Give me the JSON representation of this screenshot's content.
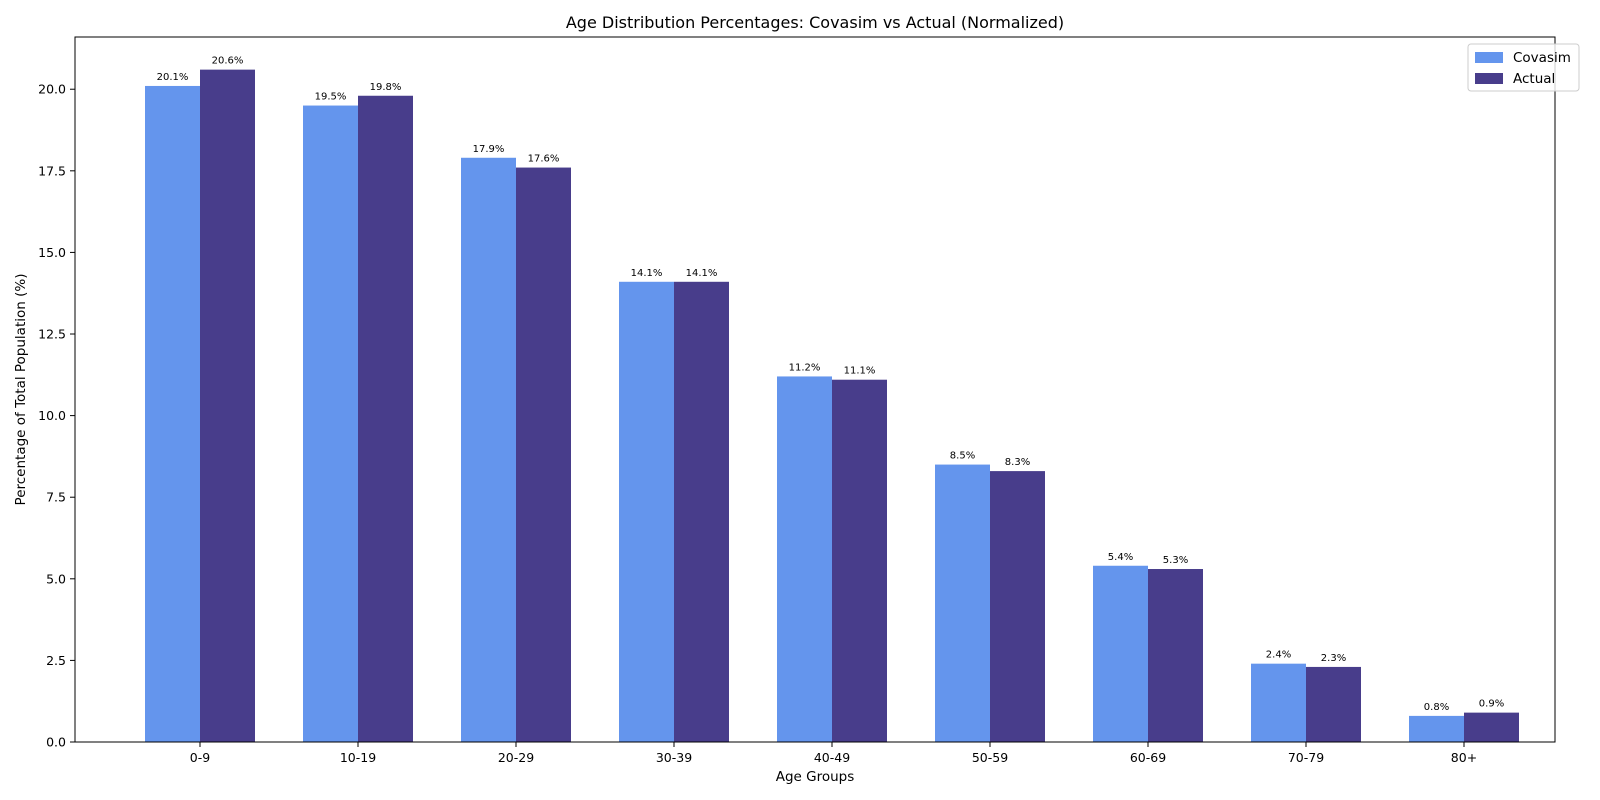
{
  "chart_data": {
    "type": "bar",
    "title": "Age Distribution Percentages: Covasim vs Actual (Normalized)",
    "xlabel": "Age Groups",
    "ylabel": "Percentage of Total Population (%)",
    "ylim": [
      0,
      21.6
    ],
    "yticks": [
      0.0,
      2.5,
      5.0,
      7.5,
      10.0,
      12.5,
      15.0,
      17.5,
      20.0
    ],
    "ytick_labels": [
      "0.0",
      "2.5",
      "5.0",
      "7.5",
      "10.0",
      "12.5",
      "15.0",
      "17.5",
      "20.0"
    ],
    "categories": [
      "0-9",
      "10-19",
      "20-29",
      "30-39",
      "40-49",
      "50-59",
      "60-69",
      "70-79",
      "80+"
    ],
    "series": [
      {
        "name": "Covasim",
        "color": "#6495ED",
        "values": [
          20.1,
          19.5,
          17.9,
          14.1,
          11.2,
          8.5,
          5.4,
          2.4,
          0.8
        ],
        "labels": [
          "20.1%",
          "19.5%",
          "17.9%",
          "14.1%",
          "11.2%",
          "8.5%",
          "5.4%",
          "2.4%",
          "0.8%"
        ]
      },
      {
        "name": "Actual",
        "color": "#483D8B",
        "values": [
          20.6,
          19.8,
          17.6,
          14.1,
          11.1,
          8.3,
          5.3,
          2.3,
          0.9
        ],
        "labels": [
          "20.6%",
          "19.8%",
          "17.6%",
          "14.1%",
          "11.1%",
          "8.3%",
          "5.3%",
          "2.3%",
          "0.9%"
        ]
      }
    ],
    "legend": "top-right",
    "grid": false
  }
}
